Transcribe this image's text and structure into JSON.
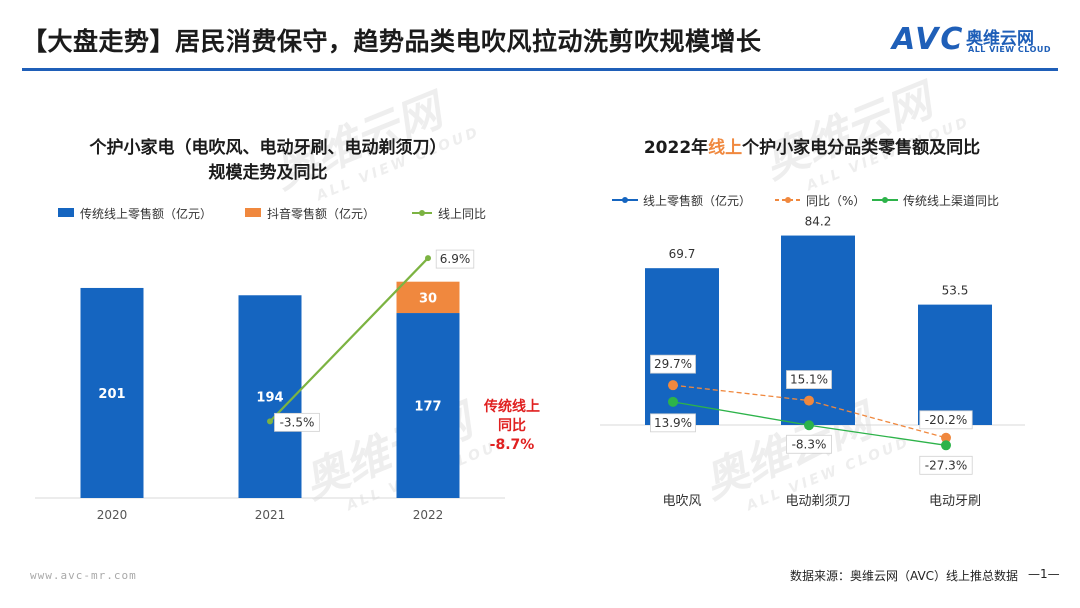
{
  "header": {
    "title": "【大盘走势】居民消费保守，趋势品类电吹风拉动洗剪吹规模增长",
    "logo": {
      "mark": "AVC",
      "name_cn": "奥维云网",
      "name_en": "ALL VIEW CLOUD"
    },
    "accent": "#1f5fb8"
  },
  "watermark": {
    "cn": "奥维云网",
    "en": "ALL VIEW CLOUD"
  },
  "footer": {
    "url": "www.avc-mr.com",
    "source": "数据来源：奥维云网（AVC）线上推总数据",
    "page": "—1—"
  },
  "chart_data": [
    {
      "type": "bar",
      "title": "个护小家电（电吹风、电动牙刷、电动剃须刀）",
      "title_line2": "规模走势及同比",
      "categories": [
        "2020",
        "2021",
        "2022"
      ],
      "legend": [
        "传统线上零售额（亿元）",
        "抖音零售额（亿元）",
        "线上同比"
      ],
      "series": [
        {
          "name": "传统线上零售额（亿元）",
          "kind": "bar",
          "stack": true,
          "color": "#1565c0",
          "values": [
            201,
            194,
            177
          ],
          "labels": [
            "201",
            "194",
            "177"
          ]
        },
        {
          "name": "抖音零售额（亿元）",
          "kind": "bar",
          "stack": true,
          "color": "#f0883e",
          "values": [
            null,
            null,
            30
          ],
          "labels": [
            "",
            "",
            "30"
          ]
        },
        {
          "name": "线上同比",
          "kind": "line",
          "color": "#7cb342",
          "values": [
            null,
            -3.5,
            6.9
          ],
          "labels": [
            "",
            "-3.5%",
            "6.9%"
          ]
        }
      ],
      "annotation": {
        "line1": "传统线上",
        "line2": "同比",
        "line3": "-8.7%",
        "color": "#e02020"
      }
    },
    {
      "type": "bar",
      "title_prefix": "2022年",
      "title_highlight": "线上",
      "title_suffix": "个护小家电分品类零售额及同比",
      "highlight_color": "#f0883e",
      "categories": [
        "电吹风",
        "电动剃须刀",
        "电动牙刷"
      ],
      "legend": [
        "线上零售额（亿元）",
        "同比（%）",
        "传统线上渠道同比"
      ],
      "series": [
        {
          "name": "线上零售额（亿元）",
          "kind": "bar",
          "color": "#1565c0",
          "values": [
            69.7,
            84.2,
            53.5
          ],
          "labels": [
            "69.7",
            "84.2",
            "53.5"
          ]
        },
        {
          "name": "同比（%）",
          "kind": "line",
          "dashed": true,
          "color": "#f0883e",
          "values": [
            29.7,
            15.1,
            -20.2
          ],
          "labels": [
            "29.7%",
            "15.1%",
            "-20.2%"
          ]
        },
        {
          "name": "传统线上渠道同比",
          "kind": "line",
          "color": "#2db34a",
          "values": [
            13.9,
            -8.3,
            -27.3
          ],
          "labels": [
            "13.9%",
            "-8.3%",
            "-27.3%"
          ]
        }
      ]
    }
  ]
}
